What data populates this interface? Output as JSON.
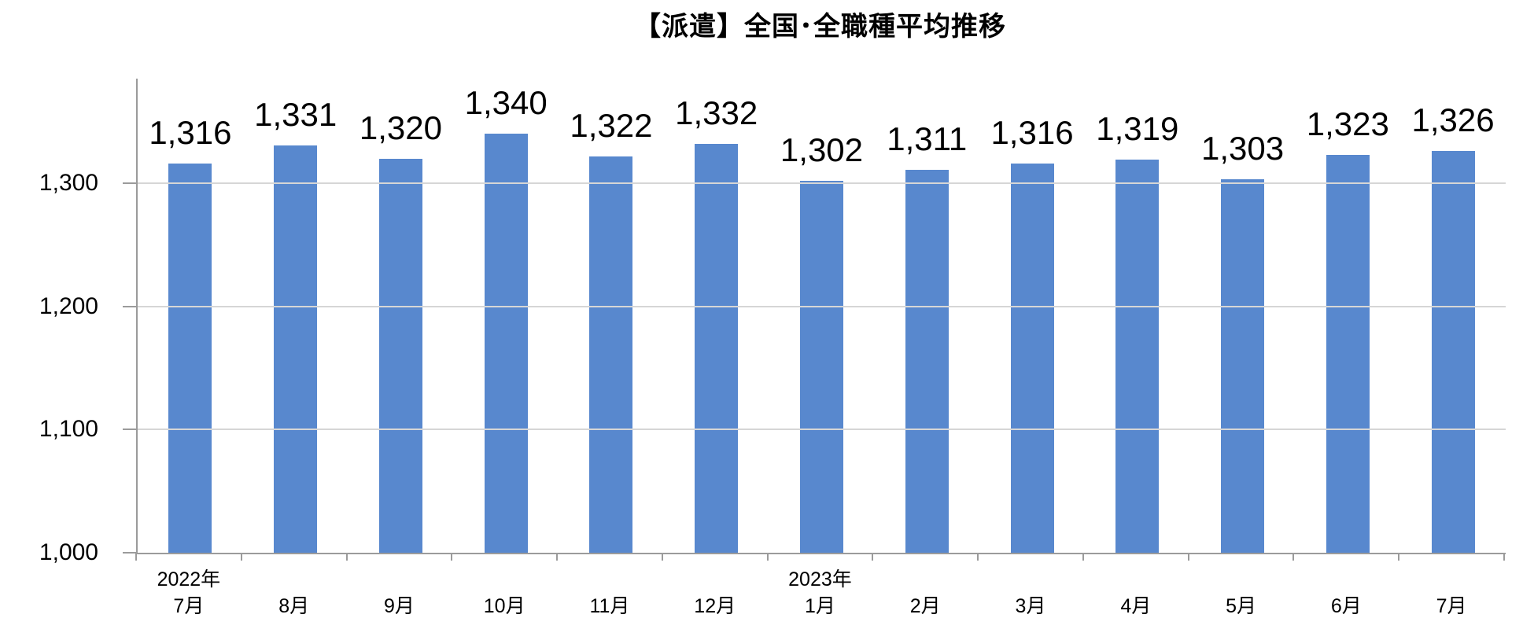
{
  "chart_data": {
    "type": "bar",
    "title": "【派遣】全国･全職種平均推移",
    "categories": [
      {
        "year": "2022年",
        "month": "7月"
      },
      {
        "year": "",
        "month": "8月"
      },
      {
        "year": "",
        "month": "9月"
      },
      {
        "year": "",
        "month": "10月"
      },
      {
        "year": "",
        "month": "11月"
      },
      {
        "year": "",
        "month": "12月"
      },
      {
        "year": "2023年",
        "month": "1月"
      },
      {
        "year": "",
        "month": "2月"
      },
      {
        "year": "",
        "month": "3月"
      },
      {
        "year": "",
        "month": "4月"
      },
      {
        "year": "",
        "month": "5月"
      },
      {
        "year": "",
        "month": "6月"
      },
      {
        "year": "",
        "month": "7月"
      }
    ],
    "values": [
      1316,
      1331,
      1320,
      1340,
      1322,
      1332,
      1302,
      1311,
      1316,
      1319,
      1303,
      1323,
      1326
    ],
    "value_labels": [
      "1,316",
      "1,331",
      "1,320",
      "1,340",
      "1,322",
      "1,332",
      "1,302",
      "1,311",
      "1,316",
      "1,319",
      "1,303",
      "1,323",
      "1,326"
    ],
    "yticks": [
      {
        "value": 1000,
        "label": "1,000"
      },
      {
        "value": 1100,
        "label": "1,100"
      },
      {
        "value": 1200,
        "label": "1,200"
      },
      {
        "value": 1300,
        "label": "1,300"
      }
    ],
    "ylim": [
      1000,
      1385
    ],
    "xlabel": "",
    "ylabel": "",
    "grid": true,
    "legend": false
  },
  "colors": {
    "bar": "#5888CE",
    "grid": "#D6D6D6",
    "axis": "#9B9B9B",
    "text": "#000000",
    "background": "#FFFFFF"
  }
}
